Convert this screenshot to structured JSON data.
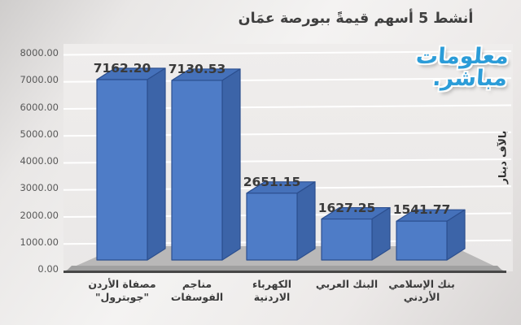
{
  "title": "أنشط 5 أسهم قيمةً ببورصة عمَان",
  "logo": {
    "line1": "معلومات",
    "line2": "مباشر."
  },
  "value_axis_title": "بالآف دينار",
  "colors": {
    "bar_front": "#4e7cc7",
    "bar_top": "#4571ba",
    "bar_side": "#3c64a8",
    "bar_edge": "#2c4f8f",
    "floor": "#b9b8b8",
    "floor_bevel": "#a0a0a0",
    "axis_line": "#474747",
    "gridline": "#ffffff",
    "logo_blue": "#2b9cd8"
  },
  "chart_data": {
    "type": "bar",
    "style": "3d-column",
    "title": "أنشط 5 أسهم قيمةً ببورصة عمَان",
    "categories": [
      "مصفاة الأردن \"جوبترول\"",
      "مناجم الفوسفات",
      "الكهرباء الاردنية",
      "البنك العربي",
      "بنك الإسلامي الأردني"
    ],
    "category_lines": [
      [
        "مصفاة الأردن",
        "\"جوبترول\""
      ],
      [
        "مناجم",
        "الفوسفات"
      ],
      [
        "الكهرباء",
        "الاردنية"
      ],
      [
        "البنك العربي",
        ""
      ],
      [
        "بنك الإسلامي",
        "الأردني"
      ]
    ],
    "values": [
      7162.2,
      7130.53,
      2651.15,
      1627.25,
      1541.77
    ],
    "value_labels": [
      "7162.20",
      "7130.53",
      "2651.15",
      "1627.25",
      "1541.77"
    ],
    "ylabel": "بالآف دينار",
    "xlabel": "",
    "ylim": [
      0,
      8000
    ],
    "ytick_step": 1000,
    "yticks": [
      "8000.00",
      "7000.00",
      "6000.00",
      "5000.00",
      "4000.00",
      "3000.00",
      "2000.00",
      "1000.00",
      "0.00"
    ],
    "grid": true,
    "legend": "none"
  }
}
